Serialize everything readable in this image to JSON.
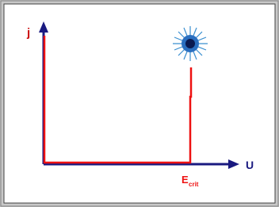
{
  "diagram": {
    "y_axis_label": "j",
    "x_axis_label": "U",
    "critical_label": {
      "main": "E",
      "subscript": "crit"
    }
  }
}
